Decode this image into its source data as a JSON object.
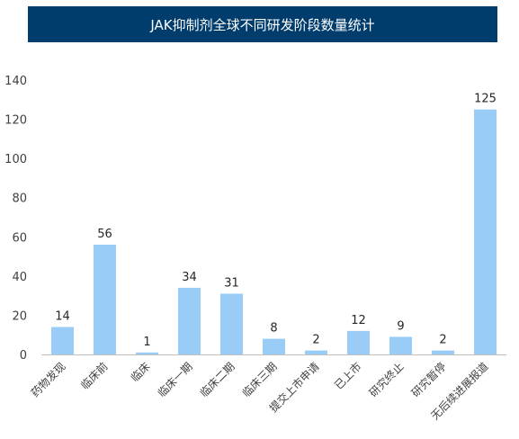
{
  "colors": {
    "title_bg": "#003c6c",
    "title_text": "#ffffff",
    "bar": "#99ccf7",
    "axis": "#bfbfbf",
    "text": "#404040"
  },
  "chart_data": {
    "type": "bar",
    "title": "JAK抑制剂全球不同研发阶段数量统计",
    "xlabel": "",
    "ylabel": "",
    "ylim": [
      0,
      140
    ],
    "yticks": [
      0,
      20,
      40,
      60,
      80,
      100,
      120,
      140
    ],
    "grid": false,
    "categories": [
      "药物发现",
      "临床前",
      "临床",
      "临床一期",
      "临床二期",
      "临床三期",
      "提交上市申请",
      "已上市",
      "研究终止",
      "研究暂停",
      "无后续进展报道"
    ],
    "values": [
      14,
      56,
      1,
      34,
      31,
      8,
      2,
      12,
      9,
      2,
      125
    ]
  }
}
